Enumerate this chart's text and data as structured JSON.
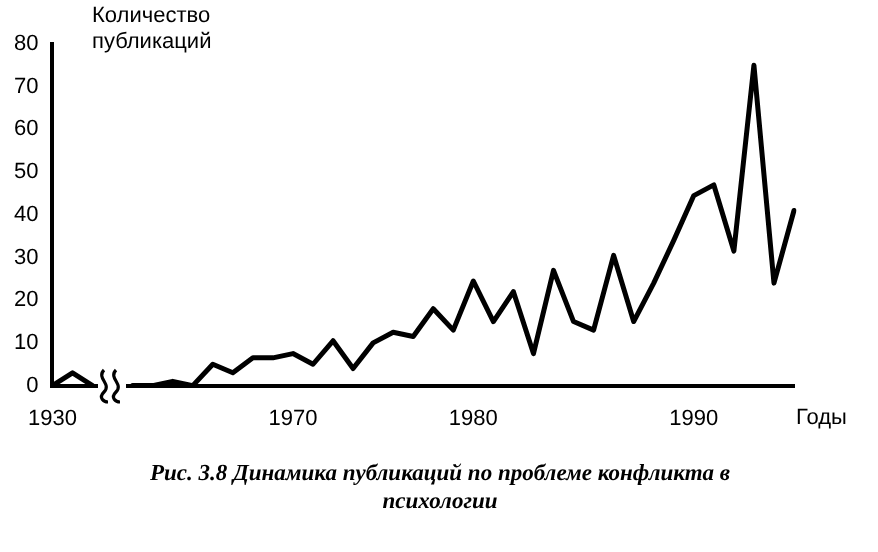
{
  "chart_data": {
    "type": "line",
    "ylabel": "Количество публикаций",
    "xlabel": "Годы",
    "annotations": [
      "Рис. 3.8 Динамика публикаций по проблеме конфликта в психологии"
    ],
    "categories": [
      "1930",
      null,
      null,
      null,
      null,
      null,
      null,
      null,
      null,
      null,
      null,
      null,
      "1970",
      null,
      null,
      null,
      null,
      null,
      null,
      null,
      null,
      "1980",
      null,
      null,
      null,
      null,
      null,
      null,
      null,
      null,
      null,
      null,
      "1990",
      null,
      null,
      null,
      null,
      null
    ],
    "series": [
      {
        "color": "#000000",
        "values": [
          0,
          3,
          0,
          null,
          0,
          0,
          1,
          0,
          5,
          3,
          6.5,
          6.5,
          7.5,
          5,
          10.5,
          4,
          10,
          12.5,
          11.5,
          18,
          13,
          24.5,
          15,
          22,
          7.5,
          27,
          15,
          13,
          30.5,
          15,
          24,
          34,
          44.5,
          47,
          31.5,
          75,
          24,
          41
        ]
      }
    ],
    "ylim": [
      0,
      80
    ],
    "yticks": [
      0,
      10,
      20,
      30,
      40,
      50,
      60,
      70,
      80
    ],
    "grid": false,
    "legend": false,
    "marker": "none",
    "line_style": "solid"
  }
}
